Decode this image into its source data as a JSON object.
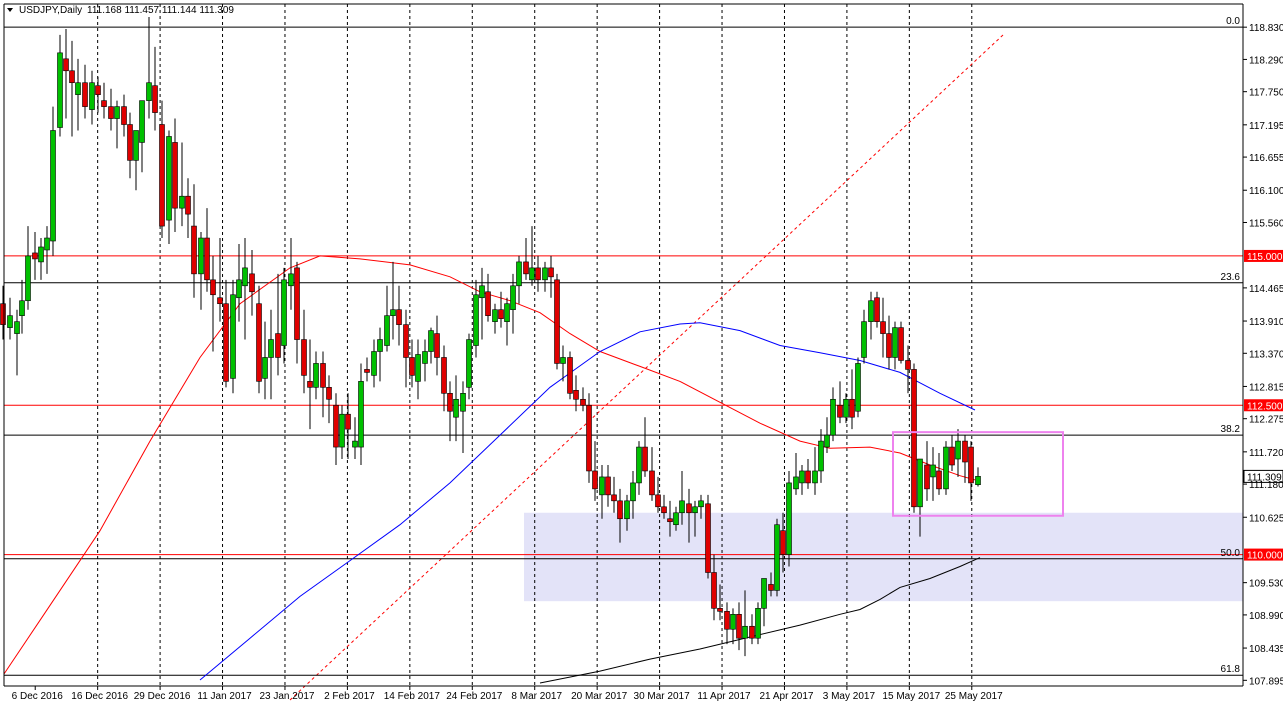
{
  "header": {
    "triangle_icon": "collapse-triangle-icon",
    "symbol_tf": "USDJPY,Daily",
    "ohlc": "111.168 111.457 111.144 111.309"
  },
  "chart_data": {
    "type": "candlestick",
    "symbol": "USDJPY",
    "timeframe": "Daily",
    "ohlc_header": {
      "open": 111.168,
      "high": 111.457,
      "low": 111.144,
      "close": 111.309
    },
    "current_price_label": "111.309",
    "ylim": [
      107.85,
      118.95
    ],
    "y_ticks": [
      "118.830",
      "118.290",
      "117.750",
      "117.195",
      "116.655",
      "116.100",
      "115.560",
      "115.000",
      "114.465",
      "113.910",
      "113.370",
      "112.815",
      "112.500",
      "112.275",
      "111.720",
      "111.309",
      "111.180",
      "110.625",
      "110.000",
      "109.530",
      "108.990",
      "108.435",
      "107.895"
    ],
    "x_ticks": [
      "6 Dec 2016",
      "16 Dec 2016",
      "29 Dec 2016",
      "11 Jan 2017",
      "23 Jan 2017",
      "2 Feb 2017",
      "14 Feb 2017",
      "24 Feb 2017",
      "8 Mar 2017",
      "20 Mar 2017",
      "30 Mar 2017",
      "11 Apr 2017",
      "21 Apr 2017",
      "3 May 2017",
      "15 May 2017",
      "25 May 2017"
    ],
    "horizontal_levels": [
      {
        "price": 115.0,
        "label": "115.000",
        "color": "#ff0000"
      },
      {
        "price": 112.5,
        "label": "112.500",
        "color": "#ff0000"
      },
      {
        "price": 110.0,
        "label": "110.000",
        "color": "#ff0000"
      }
    ],
    "fibonacci": {
      "color": "#ff0000",
      "levels": [
        {
          "label": "0.0",
          "price": 118.83
        },
        {
          "label": "23.6",
          "price": 114.55
        },
        {
          "label": "38.2",
          "price": 112.0
        },
        {
          "label": "50.0",
          "price": 109.93
        },
        {
          "label": "61.8",
          "price": 107.98
        }
      ]
    },
    "highlight_zone": {
      "from": 109.22,
      "to": 110.7,
      "color": "#e3e3f8"
    },
    "highlight_box": {
      "from": 110.65,
      "to": 112.05,
      "color": "#ee82ee"
    },
    "moving_averages": [
      {
        "color": "#ff0000",
        "points": [
          [
            4,
            108.0
          ],
          [
            40,
            108.9
          ],
          [
            100,
            110.4
          ],
          [
            150,
            111.9
          ],
          [
            200,
            113.3
          ],
          [
            240,
            114.2
          ],
          [
            290,
            114.8
          ],
          [
            320,
            115.0
          ],
          [
            360,
            114.95
          ],
          [
            410,
            114.85
          ],
          [
            450,
            114.65
          ],
          [
            480,
            114.4
          ],
          [
            510,
            114.25
          ],
          [
            540,
            114.05
          ],
          [
            570,
            113.7
          ],
          [
            600,
            113.4
          ],
          [
            640,
            113.15
          ],
          [
            680,
            112.9
          ],
          [
            720,
            112.55
          ],
          [
            760,
            112.2
          ],
          [
            800,
            111.9
          ],
          [
            830,
            111.78
          ],
          [
            870,
            111.8
          ],
          [
            900,
            111.7
          ],
          [
            930,
            111.5
          ],
          [
            960,
            111.32
          ],
          [
            975,
            111.25
          ]
        ]
      },
      {
        "color": "#0000ff",
        "points": [
          [
            200,
            107.9
          ],
          [
            250,
            108.6
          ],
          [
            300,
            109.3
          ],
          [
            350,
            109.9
          ],
          [
            400,
            110.5
          ],
          [
            450,
            111.2
          ],
          [
            500,
            112.0
          ],
          [
            550,
            112.8
          ],
          [
            600,
            113.4
          ],
          [
            640,
            113.73
          ],
          [
            680,
            113.86
          ],
          [
            700,
            113.88
          ],
          [
            740,
            113.75
          ],
          [
            780,
            113.5
          ],
          [
            820,
            113.38
          ],
          [
            860,
            113.25
          ],
          [
            900,
            113.05
          ],
          [
            940,
            112.7
          ],
          [
            975,
            112.42
          ]
        ]
      },
      {
        "color": "#000000",
        "points": [
          [
            540,
            107.85
          ],
          [
            600,
            108.05
          ],
          [
            650,
            108.25
          ],
          [
            700,
            108.42
          ],
          [
            750,
            108.62
          ],
          [
            800,
            108.82
          ],
          [
            840,
            109.0
          ],
          [
            860,
            109.08
          ],
          [
            880,
            109.25
          ],
          [
            900,
            109.45
          ],
          [
            930,
            109.6
          ],
          [
            960,
            109.8
          ],
          [
            980,
            109.95
          ]
        ]
      }
    ],
    "candles": [
      [
        3,
        114.2,
        114.5,
        113.6,
        113.85
      ],
      [
        10,
        113.8,
        114.3,
        113.6,
        114.0
      ],
      [
        17,
        113.7,
        114.1,
        113.0,
        113.9
      ],
      [
        22,
        114.0,
        114.6,
        113.7,
        114.25
      ],
      [
        28,
        114.25,
        115.5,
        114.1,
        115.0
      ],
      [
        35,
        115.05,
        115.4,
        114.6,
        114.95
      ],
      [
        41,
        114.9,
        115.3,
        114.6,
        115.15
      ],
      [
        47,
        115.1,
        115.5,
        114.7,
        115.3
      ],
      [
        53,
        115.25,
        117.5,
        115.0,
        117.1
      ],
      [
        60,
        117.15,
        118.7,
        117.0,
        118.4
      ],
      [
        66,
        118.3,
        118.8,
        117.3,
        118.1
      ],
      [
        72,
        118.1,
        118.6,
        117.0,
        117.9
      ],
      [
        78,
        117.7,
        118.3,
        117.1,
        117.9
      ],
      [
        85,
        117.9,
        118.2,
        117.3,
        117.5
      ],
      [
        92,
        117.45,
        118.1,
        117.2,
        117.9
      ],
      [
        98,
        117.85,
        118.0,
        117.4,
        117.7
      ],
      [
        104,
        117.6,
        117.9,
        117.3,
        117.5
      ],
      [
        111,
        117.5,
        117.8,
        117.1,
        117.3
      ],
      [
        117,
        117.3,
        117.6,
        116.8,
        117.5
      ],
      [
        124,
        117.5,
        117.7,
        117.0,
        117.2
      ],
      [
        130,
        117.2,
        117.4,
        116.3,
        116.6
      ],
      [
        136,
        116.6,
        117.0,
        116.1,
        117.1
      ],
      [
        142,
        116.9,
        117.5,
        116.4,
        117.6
      ],
      [
        149,
        117.6,
        119.0,
        117.3,
        117.9
      ],
      [
        155,
        117.85,
        118.5,
        117.1,
        117.4
      ],
      [
        162,
        117.2,
        117.6,
        115.3,
        115.5
      ],
      [
        169,
        115.6,
        117.1,
        115.2,
        117.0
      ],
      [
        175,
        116.9,
        117.3,
        115.4,
        115.8
      ],
      [
        182,
        115.8,
        116.9,
        115.5,
        116.0
      ],
      [
        188,
        116.0,
        116.3,
        115.3,
        115.7
      ],
      [
        194,
        115.5,
        116.2,
        114.3,
        114.7
      ],
      [
        201,
        114.7,
        115.4,
        114.1,
        115.3
      ],
      [
        207,
        115.3,
        115.8,
        114.4,
        114.6
      ],
      [
        213,
        114.6,
        115.0,
        113.4,
        114.35
      ],
      [
        220,
        114.3,
        115.3,
        113.9,
        114.2
      ],
      [
        226,
        114.2,
        114.6,
        112.8,
        112.9
      ],
      [
        233,
        112.95,
        114.6,
        112.7,
        114.35
      ],
      [
        239,
        114.3,
        115.2,
        113.9,
        114.6
      ],
      [
        245,
        114.5,
        115.3,
        113.6,
        114.8
      ],
      [
        252,
        114.7,
        115.1,
        114.0,
        114.4
      ],
      [
        259,
        114.2,
        114.5,
        112.7,
        112.9
      ],
      [
        265,
        112.95,
        113.9,
        112.6,
        113.3
      ],
      [
        271,
        113.3,
        114.1,
        112.6,
        113.6
      ],
      [
        278,
        113.7,
        114.7,
        113.0,
        113.3
      ],
      [
        284,
        113.5,
        114.8,
        113.2,
        114.6
      ],
      [
        291,
        114.5,
        115.3,
        114.1,
        114.7
      ],
      [
        297,
        114.8,
        114.9,
        113.2,
        113.6
      ],
      [
        304,
        113.6,
        114.1,
        112.7,
        113.0
      ],
      [
        310,
        112.9,
        113.6,
        112.1,
        112.8
      ],
      [
        316,
        112.8,
        113.4,
        112.6,
        113.2
      ],
      [
        323,
        113.2,
        113.4,
        112.3,
        112.8
      ],
      [
        329,
        112.8,
        113.0,
        112.2,
        112.6
      ],
      [
        336,
        112.5,
        112.7,
        111.5,
        111.8
      ],
      [
        342,
        111.8,
        112.5,
        111.6,
        112.35
      ],
      [
        348,
        112.35,
        112.7,
        111.6,
        112.1
      ],
      [
        355,
        111.8,
        112.3,
        111.6,
        111.9
      ],
      [
        361,
        111.8,
        113.2,
        111.5,
        112.9
      ],
      [
        367,
        113.1,
        113.3,
        112.9,
        113.05
      ],
      [
        374,
        113.0,
        113.6,
        112.8,
        113.4
      ],
      [
        380,
        113.4,
        113.8,
        112.9,
        113.6
      ],
      [
        387,
        113.5,
        114.5,
        113.4,
        114.0
      ],
      [
        393,
        114.0,
        114.9,
        113.6,
        114.1
      ],
      [
        399,
        114.1,
        114.5,
        113.5,
        113.85
      ],
      [
        406,
        113.85,
        114.1,
        112.8,
        113.3
      ],
      [
        412,
        113.3,
        113.6,
        112.8,
        113.0
      ],
      [
        418,
        112.9,
        113.6,
        112.6,
        113.35
      ],
      [
        425,
        113.2,
        113.6,
        112.9,
        113.4
      ],
      [
        431,
        113.4,
        113.8,
        113.2,
        113.75
      ],
      [
        437,
        113.7,
        114.0,
        113.0,
        113.3
      ],
      [
        444,
        113.3,
        113.5,
        112.4,
        112.7
      ],
      [
        450,
        112.7,
        112.9,
        111.9,
        112.4
      ],
      [
        456,
        112.3,
        113.0,
        111.9,
        112.6
      ],
      [
        463,
        112.4,
        112.9,
        111.7,
        112.7
      ],
      [
        469,
        112.8,
        113.7,
        112.6,
        113.6
      ],
      [
        476,
        113.5,
        114.6,
        113.3,
        114.35
      ],
      [
        482,
        114.3,
        114.8,
        113.6,
        114.5
      ],
      [
        488,
        114.4,
        114.7,
        113.9,
        114.0
      ],
      [
        495,
        113.9,
        114.2,
        113.7,
        114.1
      ],
      [
        501,
        114.1,
        114.4,
        113.8,
        113.95
      ],
      [
        507,
        113.9,
        114.3,
        113.5,
        114.2
      ],
      [
        513,
        114.1,
        114.7,
        113.7,
        114.5
      ],
      [
        519,
        114.5,
        115.0,
        114.2,
        114.9
      ],
      [
        526,
        114.9,
        115.3,
        114.6,
        114.7
      ],
      [
        532,
        114.6,
        115.5,
        114.5,
        114.8
      ],
      [
        538,
        114.8,
        115.0,
        114.4,
        114.6
      ],
      [
        545,
        114.6,
        114.9,
        114.4,
        114.8
      ],
      [
        551,
        114.8,
        115.0,
        114.3,
        114.65
      ],
      [
        557,
        114.6,
        114.7,
        113.1,
        113.2
      ],
      [
        563,
        113.2,
        113.5,
        112.9,
        113.3
      ],
      [
        570,
        113.3,
        113.4,
        112.6,
        112.7
      ],
      [
        576,
        112.75,
        113.0,
        112.4,
        112.6
      ],
      [
        583,
        112.6,
        112.8,
        112.4,
        112.5
      ],
      [
        589,
        112.5,
        112.7,
        111.2,
        111.4
      ],
      [
        595,
        111.4,
        111.9,
        110.9,
        111.1
      ],
      [
        602,
        111.0,
        111.5,
        110.6,
        111.3
      ],
      [
        608,
        111.3,
        111.5,
        110.8,
        111.0
      ],
      [
        614,
        111.0,
        111.3,
        110.7,
        110.9
      ],
      [
        620,
        110.9,
        111.1,
        110.2,
        110.6
      ],
      [
        627,
        110.6,
        111.0,
        110.4,
        110.9
      ],
      [
        633,
        110.9,
        111.4,
        110.6,
        111.2
      ],
      [
        639,
        111.2,
        111.9,
        111.0,
        111.8
      ],
      [
        645,
        111.8,
        112.3,
        111.3,
        111.4
      ],
      [
        652,
        111.4,
        111.8,
        110.9,
        111.0
      ],
      [
        658,
        111.0,
        111.3,
        110.7,
        110.8
      ],
      [
        664,
        110.8,
        111.0,
        110.6,
        110.7
      ],
      [
        670,
        110.6,
        110.9,
        110.3,
        110.55
      ],
      [
        676,
        110.5,
        110.8,
        110.4,
        110.7
      ],
      [
        682,
        110.7,
        111.4,
        110.5,
        110.9
      ],
      [
        689,
        110.85,
        111.1,
        110.2,
        110.7
      ],
      [
        695,
        110.7,
        110.9,
        110.3,
        110.8
      ],
      [
        701,
        110.8,
        111.0,
        110.6,
        110.9
      ],
      [
        708,
        110.85,
        111.0,
        109.6,
        109.7
      ],
      [
        714,
        109.7,
        110.0,
        108.9,
        109.1
      ],
      [
        720,
        109.1,
        109.5,
        108.9,
        109.05
      ],
      [
        727,
        109.05,
        109.2,
        108.5,
        108.75
      ],
      [
        733,
        108.75,
        109.1,
        108.5,
        109.0
      ],
      [
        739,
        109.0,
        109.2,
        108.4,
        108.6
      ],
      [
        745,
        108.6,
        109.4,
        108.3,
        108.8
      ],
      [
        752,
        108.8,
        109.0,
        108.5,
        108.6
      ],
      [
        758,
        108.6,
        109.2,
        108.5,
        109.1
      ],
      [
        764,
        109.1,
        109.5,
        108.8,
        109.6
      ],
      [
        771,
        109.5,
        109.7,
        109.3,
        109.4
      ],
      [
        777,
        109.4,
        110.6,
        109.3,
        110.5
      ],
      [
        783,
        110.4,
        110.7,
        109.7,
        110.0
      ],
      [
        789,
        110.0,
        111.4,
        109.8,
        111.2
      ],
      [
        796,
        111.1,
        111.7,
        111.0,
        111.3
      ],
      [
        802,
        111.2,
        111.5,
        111.0,
        111.4
      ],
      [
        808,
        111.4,
        111.6,
        111.1,
        111.2
      ],
      [
        815,
        111.2,
        111.8,
        111.0,
        111.4
      ],
      [
        821,
        111.4,
        112.1,
        111.2,
        111.9
      ],
      [
        827,
        111.8,
        112.3,
        111.7,
        112.0
      ],
      [
        833,
        112.0,
        112.8,
        111.9,
        112.6
      ],
      [
        840,
        112.5,
        112.9,
        112.2,
        112.3
      ],
      [
        846,
        112.3,
        112.7,
        112.2,
        112.6
      ],
      [
        852,
        112.6,
        113.1,
        112.1,
        112.3
      ],
      [
        858,
        112.4,
        113.3,
        112.3,
        113.2
      ],
      [
        864,
        113.3,
        114.1,
        113.2,
        113.9
      ],
      [
        871,
        113.9,
        114.4,
        113.6,
        114.25
      ],
      [
        877,
        114.3,
        114.4,
        113.8,
        113.9
      ],
      [
        883,
        113.9,
        114.3,
        113.3,
        113.7
      ],
      [
        889,
        113.7,
        114.0,
        113.1,
        113.3
      ],
      [
        895,
        113.3,
        113.9,
        113.1,
        113.8
      ],
      [
        901,
        113.8,
        113.9,
        113.2,
        113.25
      ],
      [
        908,
        113.25,
        113.5,
        112.7,
        113.1
      ],
      [
        914,
        113.1,
        113.2,
        110.7,
        110.8
      ],
      [
        920,
        110.8,
        111.6,
        110.3,
        111.6
      ],
      [
        927,
        111.5,
        111.9,
        110.9,
        111.1
      ],
      [
        933,
        111.3,
        111.8,
        110.9,
        111.5
      ],
      [
        939,
        111.4,
        111.7,
        111.0,
        111.1
      ],
      [
        946,
        111.1,
        111.9,
        111.0,
        111.8
      ],
      [
        952,
        111.8,
        112.0,
        111.4,
        111.5
      ],
      [
        958,
        111.6,
        112.1,
        111.3,
        111.9
      ],
      [
        965,
        111.9,
        112.0,
        111.2,
        111.55
      ],
      [
        971,
        111.8,
        111.9,
        110.9,
        111.2
      ],
      [
        978,
        111.17,
        111.46,
        111.14,
        111.31
      ]
    ]
  }
}
